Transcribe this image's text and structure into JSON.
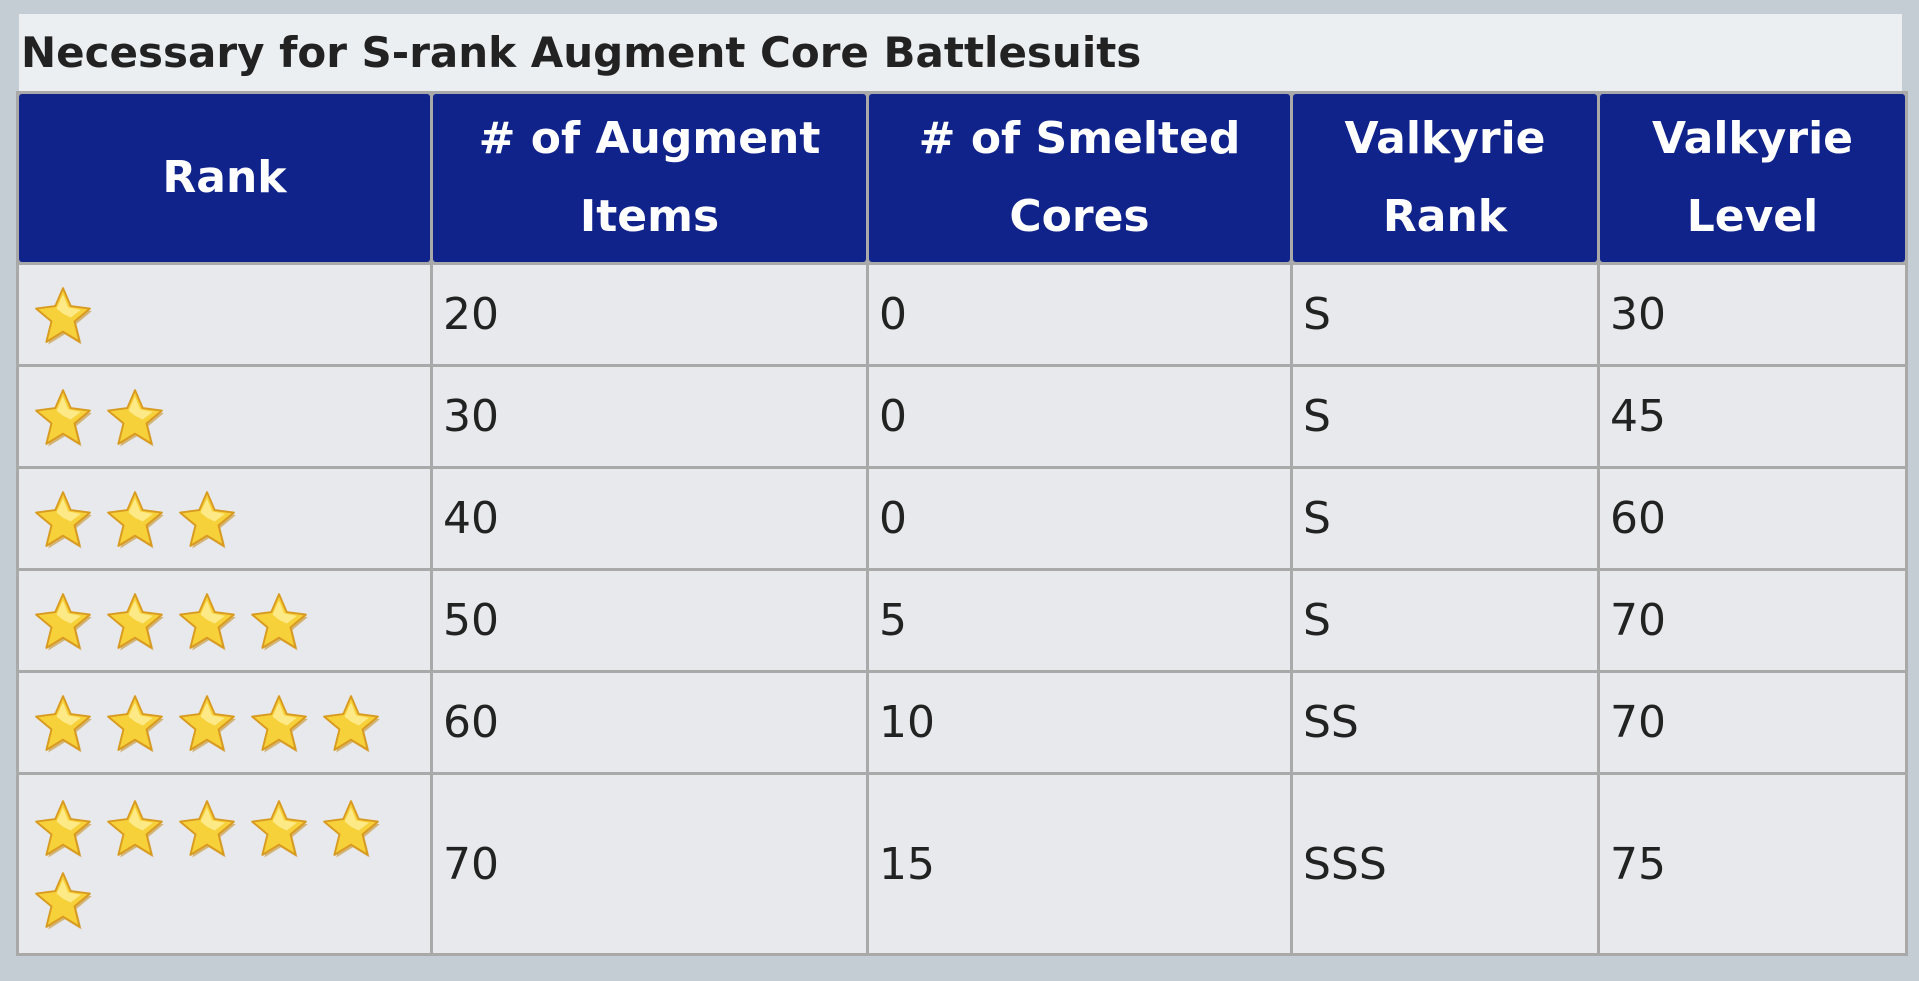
{
  "caption": "Necessary for S-rank Augment Core Battlesuits",
  "columns": [
    "Rank",
    "# of Augment Items",
    "# of Smelted Cores",
    "Valkyrie Rank",
    "Valkyrie Level"
  ],
  "rank_icon": "star-icon",
  "star_color": "#f7d13a",
  "rows": [
    {
      "stars": 1,
      "augment_items": "20",
      "smelted_cores": "0",
      "valkyrie_rank": "S",
      "valkyrie_level": "30"
    },
    {
      "stars": 2,
      "augment_items": "30",
      "smelted_cores": "0",
      "valkyrie_rank": "S",
      "valkyrie_level": "45"
    },
    {
      "stars": 3,
      "augment_items": "40",
      "smelted_cores": "0",
      "valkyrie_rank": "S",
      "valkyrie_level": "60"
    },
    {
      "stars": 4,
      "augment_items": "50",
      "smelted_cores": "5",
      "valkyrie_rank": "S",
      "valkyrie_level": "70"
    },
    {
      "stars": 5,
      "augment_items": "60",
      "smelted_cores": "10",
      "valkyrie_rank": "SS",
      "valkyrie_level": "70"
    },
    {
      "stars": 6,
      "augment_items": "70",
      "smelted_cores": "15",
      "valkyrie_rank": "SSS",
      "valkyrie_level": "75"
    }
  ]
}
